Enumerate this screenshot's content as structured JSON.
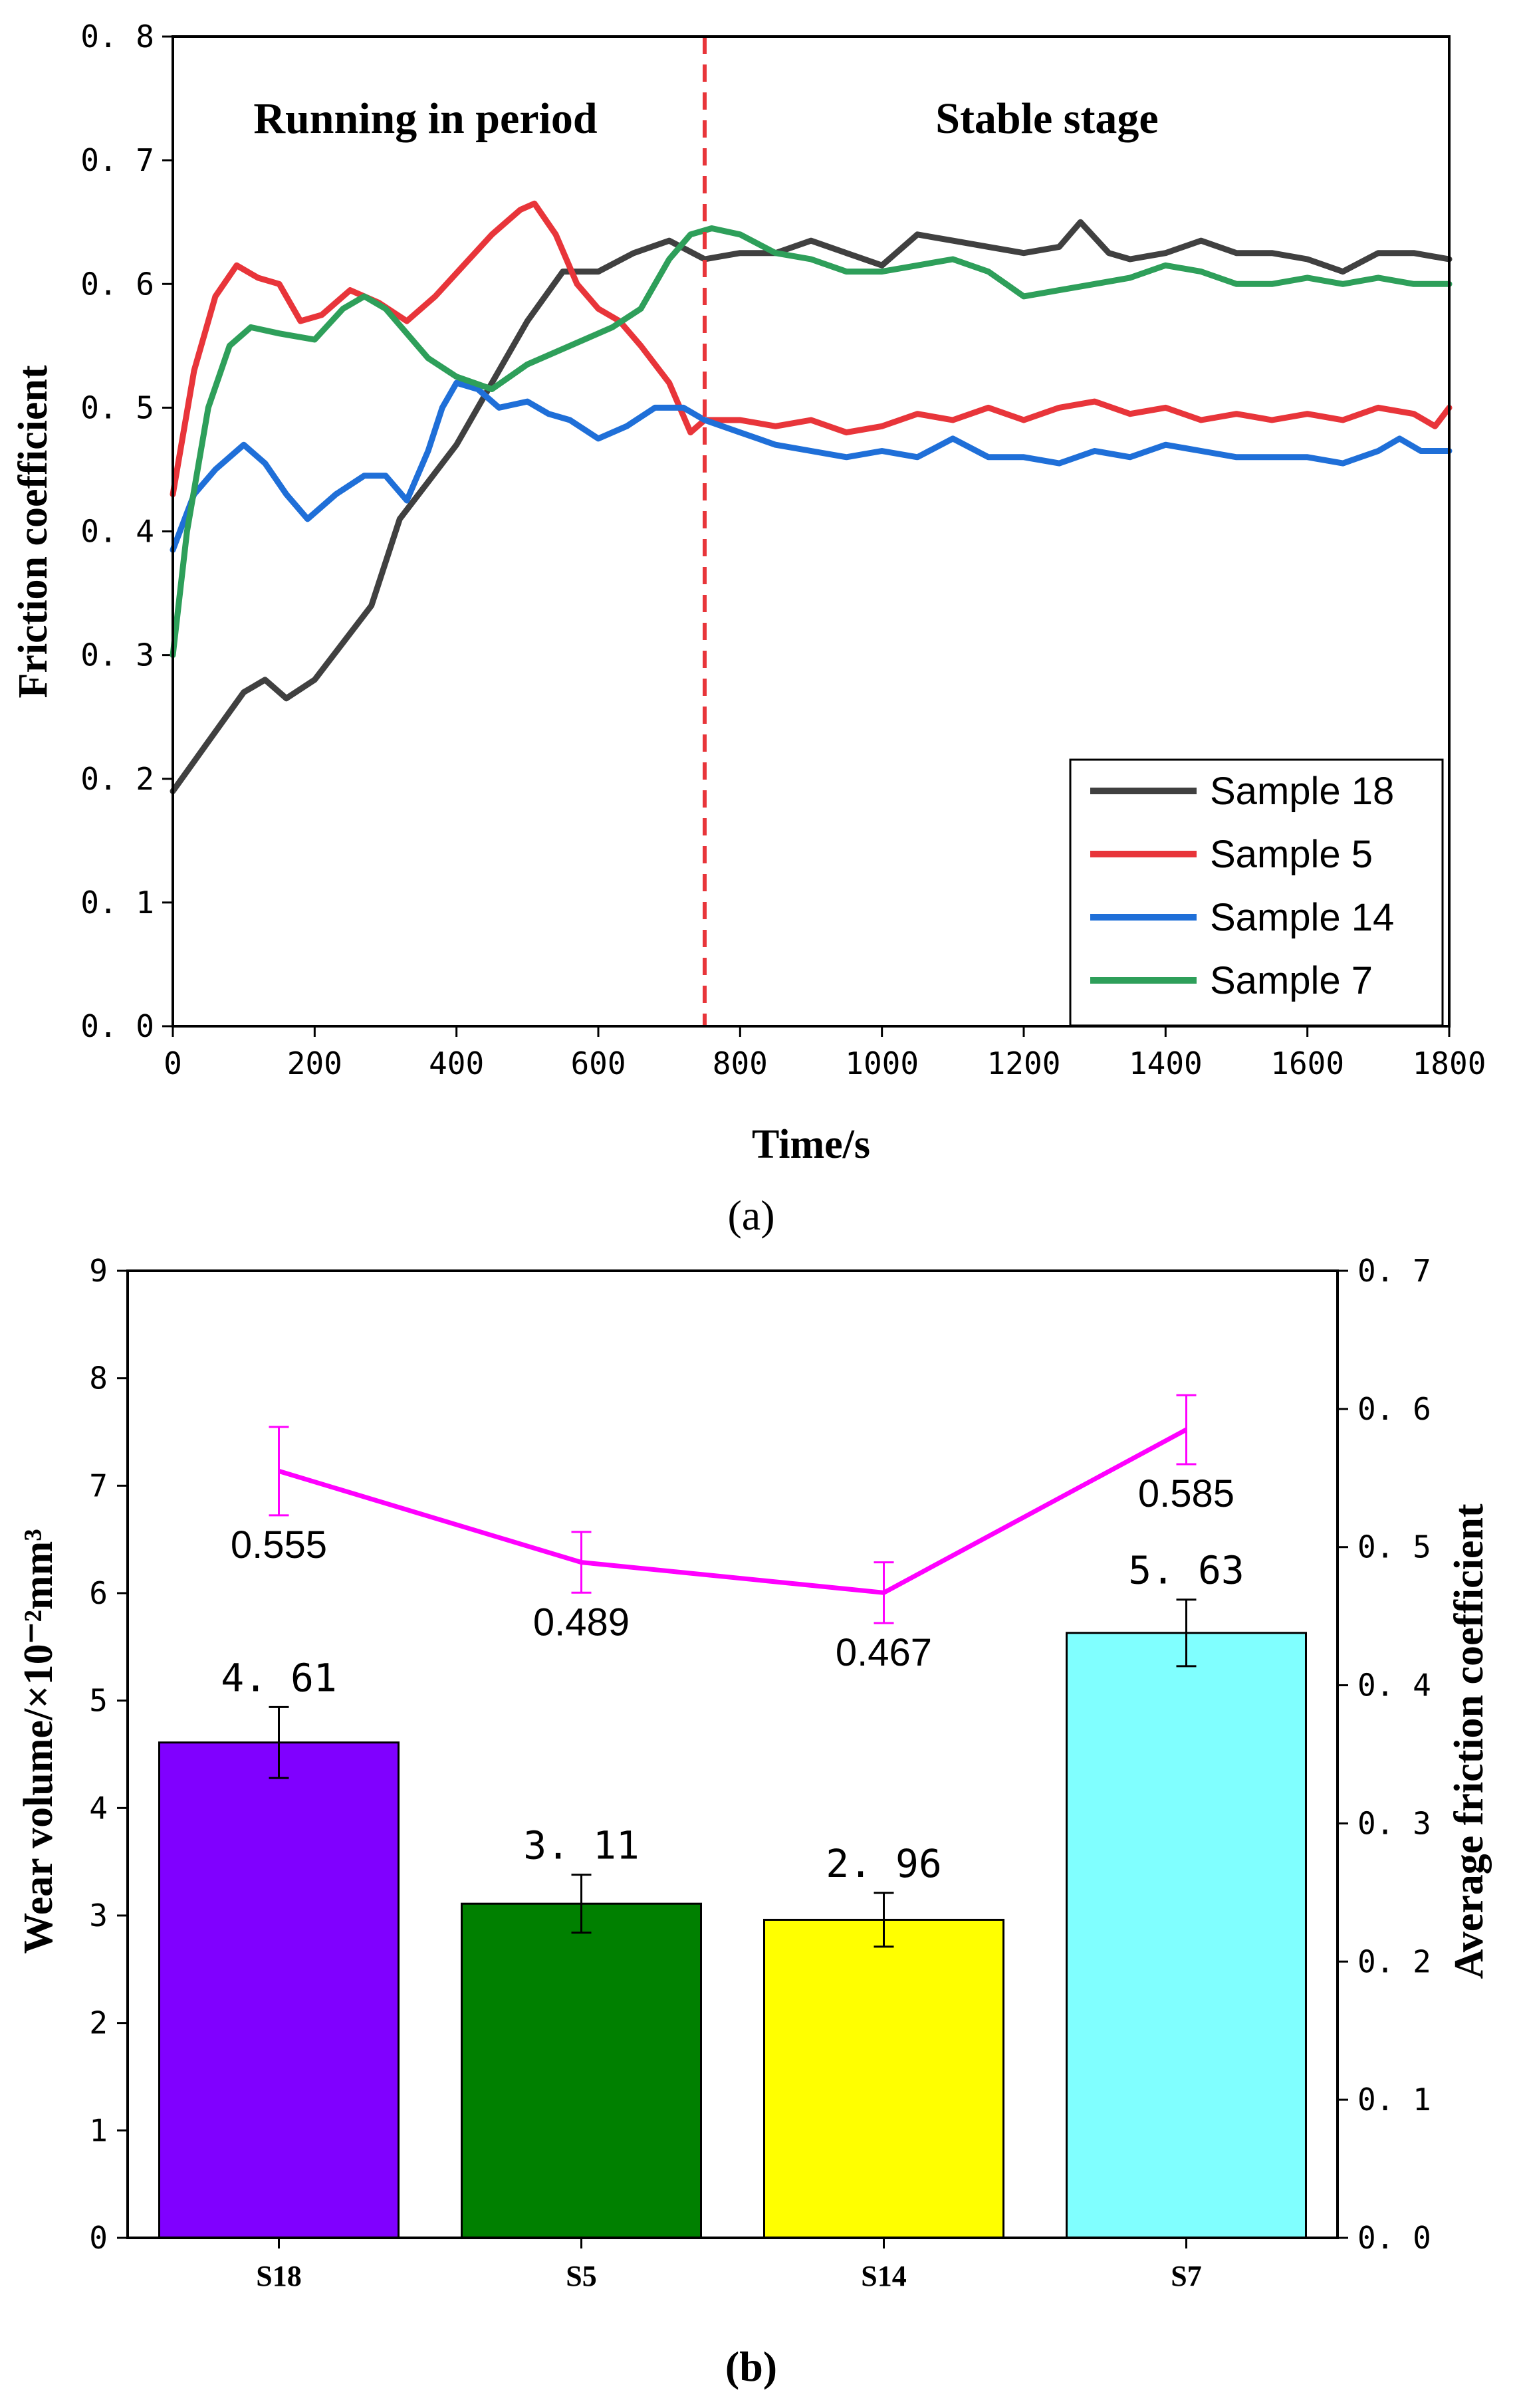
{
  "chart_data": [
    {
      "type": "line",
      "panel_label": "(a)",
      "xlabel": "Time/s",
      "ylabel": "Friction coefficient",
      "xlim": [
        0,
        1800
      ],
      "ylim": [
        0,
        0.8
      ],
      "xticks": [
        "0",
        "200",
        "400",
        "600",
        "800",
        "1000",
        "1200",
        "1400",
        "1600",
        "1800"
      ],
      "yticks": [
        "0. 0",
        "0. 1",
        "0. 2",
        "0. 3",
        "0. 4",
        "0. 5",
        "0. 6",
        "0. 7",
        "0. 8"
      ],
      "annotations": [
        "Running in period",
        "Stable stage"
      ],
      "divider_x": 750,
      "legend_position": "bottom-right",
      "series": [
        {
          "name": "Sample 18",
          "color": "#404040",
          "x": [
            0,
            50,
            100,
            130,
            160,
            200,
            240,
            280,
            320,
            360,
            400,
            450,
            500,
            550,
            600,
            650,
            700,
            750,
            800,
            850,
            900,
            950,
            1000,
            1050,
            1100,
            1150,
            1200,
            1250,
            1280,
            1320,
            1350,
            1400,
            1450,
            1500,
            1550,
            1600,
            1650,
            1700,
            1750,
            1800
          ],
          "y": [
            0.19,
            0.23,
            0.27,
            0.28,
            0.265,
            0.28,
            0.31,
            0.34,
            0.41,
            0.44,
            0.47,
            0.52,
            0.57,
            0.61,
            0.61,
            0.625,
            0.635,
            0.62,
            0.625,
            0.625,
            0.635,
            0.625,
            0.615,
            0.64,
            0.635,
            0.63,
            0.625,
            0.63,
            0.65,
            0.625,
            0.62,
            0.625,
            0.635,
            0.625,
            0.625,
            0.62,
            0.61,
            0.625,
            0.625,
            0.62
          ]
        },
        {
          "name": "Sample 5",
          "color": "#e8353a",
          "x": [
            0,
            30,
            60,
            90,
            120,
            150,
            180,
            210,
            250,
            290,
            330,
            370,
            410,
            450,
            490,
            510,
            540,
            570,
            600,
            630,
            660,
            700,
            730,
            750,
            800,
            850,
            900,
            950,
            1000,
            1050,
            1100,
            1150,
            1200,
            1250,
            1300,
            1350,
            1400,
            1450,
            1500,
            1550,
            1600,
            1650,
            1700,
            1750,
            1780,
            1800
          ],
          "y": [
            0.43,
            0.53,
            0.59,
            0.615,
            0.605,
            0.6,
            0.57,
            0.575,
            0.595,
            0.585,
            0.57,
            0.59,
            0.615,
            0.64,
            0.66,
            0.665,
            0.64,
            0.6,
            0.58,
            0.57,
            0.55,
            0.52,
            0.48,
            0.49,
            0.49,
            0.485,
            0.49,
            0.48,
            0.485,
            0.495,
            0.49,
            0.5,
            0.49,
            0.5,
            0.505,
            0.495,
            0.5,
            0.49,
            0.495,
            0.49,
            0.495,
            0.49,
            0.5,
            0.495,
            0.485,
            0.5
          ]
        },
        {
          "name": "Sample 14",
          "color": "#1f6fd8",
          "x": [
            0,
            30,
            60,
            100,
            130,
            160,
            190,
            230,
            270,
            300,
            330,
            360,
            380,
            400,
            430,
            460,
            500,
            530,
            560,
            600,
            640,
            680,
            720,
            750,
            800,
            850,
            900,
            950,
            1000,
            1050,
            1100,
            1150,
            1200,
            1250,
            1300,
            1350,
            1400,
            1450,
            1500,
            1550,
            1600,
            1650,
            1700,
            1730,
            1760,
            1800
          ],
          "y": [
            0.385,
            0.43,
            0.45,
            0.47,
            0.455,
            0.43,
            0.41,
            0.43,
            0.445,
            0.445,
            0.425,
            0.465,
            0.5,
            0.52,
            0.515,
            0.5,
            0.505,
            0.495,
            0.49,
            0.475,
            0.485,
            0.5,
            0.5,
            0.49,
            0.48,
            0.47,
            0.465,
            0.46,
            0.465,
            0.46,
            0.475,
            0.46,
            0.46,
            0.455,
            0.465,
            0.46,
            0.47,
            0.465,
            0.46,
            0.46,
            0.46,
            0.455,
            0.465,
            0.475,
            0.465,
            0.465
          ]
        },
        {
          "name": "Sample 7",
          "color": "#2e9f5a",
          "x": [
            0,
            20,
            50,
            80,
            110,
            150,
            200,
            240,
            270,
            300,
            330,
            360,
            400,
            450,
            500,
            540,
            580,
            620,
            660,
            700,
            730,
            760,
            800,
            850,
            900,
            950,
            1000,
            1050,
            1100,
            1150,
            1200,
            1250,
            1300,
            1350,
            1400,
            1450,
            1500,
            1550,
            1600,
            1650,
            1700,
            1750,
            1800
          ],
          "y": [
            0.3,
            0.4,
            0.5,
            0.55,
            0.565,
            0.56,
            0.555,
            0.58,
            0.59,
            0.58,
            0.56,
            0.54,
            0.525,
            0.515,
            0.535,
            0.545,
            0.555,
            0.565,
            0.58,
            0.62,
            0.64,
            0.645,
            0.64,
            0.625,
            0.62,
            0.61,
            0.61,
            0.615,
            0.62,
            0.61,
            0.59,
            0.595,
            0.6,
            0.605,
            0.615,
            0.61,
            0.6,
            0.6,
            0.605,
            0.6,
            0.605,
            0.6,
            0.6
          ]
        }
      ]
    },
    {
      "type": "bar",
      "panel_label": "(b)",
      "categories": [
        "S18",
        "S5",
        "S14",
        "S7"
      ],
      "ylabel": "Wear volume/×10⁻²mm³",
      "y2label": "Average  friction coefficient",
      "ylim": [
        0,
        9
      ],
      "y2lim": [
        0,
        0.7
      ],
      "yticks": [
        "0",
        "1",
        "2",
        "3",
        "4",
        "5",
        "6",
        "7",
        "8",
        "9"
      ],
      "y2ticks": [
        "0. 0",
        "0. 1",
        "0. 2",
        "0. 3",
        "0. 4",
        "0. 5",
        "0. 6",
        "0. 7"
      ],
      "bars": {
        "values": [
          4.61,
          3.11,
          2.96,
          5.63
        ],
        "labels": [
          "4. 61",
          "3. 11",
          "2. 96",
          "5. 63"
        ],
        "errors": [
          0.33,
          0.27,
          0.25,
          0.31
        ],
        "colors": [
          "#8000ff",
          "#008000",
          "#ffff00",
          "#80ffff"
        ]
      },
      "line": {
        "values": [
          0.555,
          0.489,
          0.467,
          0.585
        ],
        "labels": [
          "0.555",
          "0.489",
          "0.467",
          "0.585"
        ],
        "errors": [
          0.032,
          0.022,
          0.022,
          0.025
        ],
        "color": "#ff00ff"
      }
    }
  ]
}
